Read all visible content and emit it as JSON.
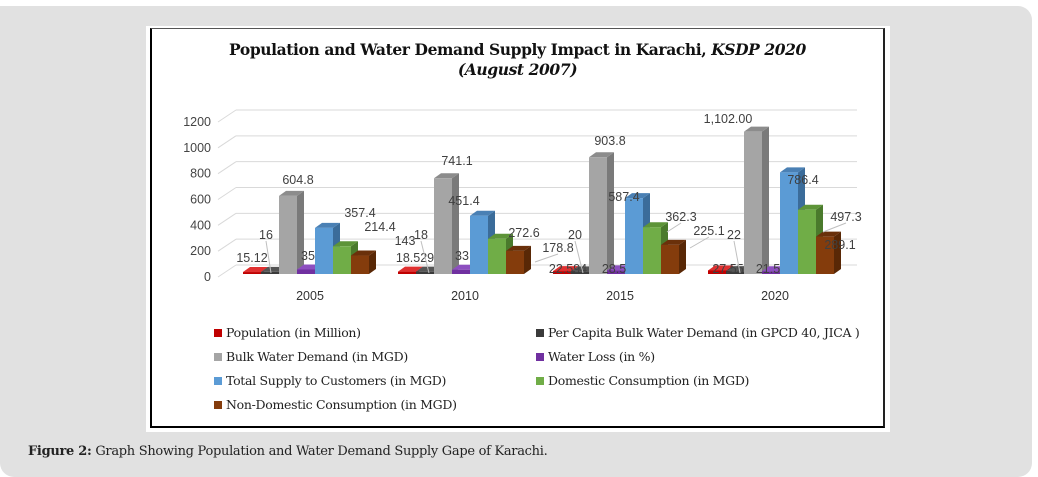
{
  "caption": {
    "label": "Figure 2:",
    "text": " Graph Showing Population and Water Demand Supply Gape of Karachi."
  },
  "chart_data": {
    "type": "bar",
    "style": "3d-clustered-column",
    "title_line1": "Population and Water Demand Supply Impact in Karachi, ",
    "title_line1_italic": "KSDP  2020",
    "title_line2": "(August 2007)",
    "xlabel": "",
    "ylabel": "",
    "ylim": [
      0,
      1200
    ],
    "yticks": [
      0,
      200,
      400,
      600,
      800,
      1000,
      1200
    ],
    "grid": true,
    "legend_position": "bottom",
    "categories": [
      "2005",
      "2010",
      "2015",
      "2020"
    ],
    "series": [
      {
        "name": "Population (in Million)",
        "color": "#c00000",
        "side": "#8b0000",
        "top": "#e03030",
        "values": [
          15.12,
          18.529,
          22.594,
          27.55
        ],
        "labels": [
          "15.12",
          "18.529",
          "22.594",
          "27.55"
        ]
      },
      {
        "name": "Per Capita Bulk Water Demand (in GPCD 40, JICA )",
        "color": "#3a3a3a",
        "side": "#1e1e1e",
        "top": "#555555",
        "values": [
          16,
          18,
          20,
          22
        ],
        "labels": [
          "16",
          "18",
          "20",
          "22"
        ]
      },
      {
        "name": "Bulk Water Demand (in MGD)",
        "color": "#a5a5a5",
        "side": "#7a7a7a",
        "top": "#8c8c8c",
        "values": [
          604.8,
          741.1,
          903.8,
          1102.0
        ],
        "labels": [
          "604.8",
          "741.1",
          "903.8",
          "1,102.00"
        ]
      },
      {
        "name": "Water Loss (in %)",
        "color": "#7030a0",
        "side": "#4b1f6e",
        "top": "#8d4fc0",
        "values": [
          35,
          33,
          28.5,
          21.5
        ],
        "labels": [
          "35",
          "33",
          "28.5",
          "21.5"
        ]
      },
      {
        "name": "Total Supply to Customers (in MGD)",
        "color": "#5b9bd5",
        "side": "#3b6c9a",
        "top": "#4a80b4",
        "values": [
          357.4,
          451.4,
          587.4,
          786.4
        ],
        "labels": [
          "357.4",
          "451.4",
          "587.4",
          "786.4"
        ]
      },
      {
        "name": "Domestic Consumption (in MGD)",
        "color": "#70ad47",
        "side": "#4a7a2c",
        "top": "#5d9438",
        "values": [
          214.4,
          272.6,
          362.3,
          497.3
        ],
        "labels": [
          "214.4",
          "272.6",
          "362.3",
          "497.3"
        ]
      },
      {
        "name": "Non-Domestic Consumption (in MGD)",
        "color": "#843c0c",
        "side": "#592806",
        "top": "#6a300a",
        "values": [
          143,
          178.8,
          225.1,
          289.1
        ],
        "labels": [
          "143",
          "178.8",
          "225.1",
          "289.1"
        ]
      }
    ]
  }
}
